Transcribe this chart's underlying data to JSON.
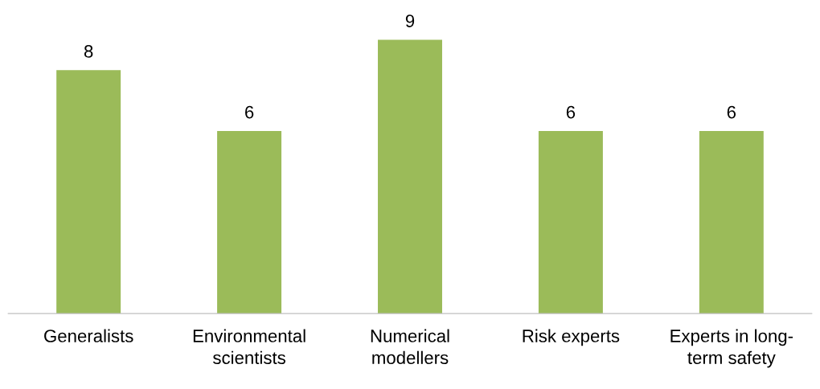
{
  "chart_data": {
    "type": "bar",
    "categories": [
      "Generalists",
      "Environmental\nscientists",
      "Numerical\nmodellers",
      "Risk experts",
      "Experts in long-\nterm safety"
    ],
    "values": [
      8,
      6,
      9,
      6,
      6
    ],
    "color": "#9bbb59",
    "data_labels": true,
    "grid": false,
    "legend": false
  }
}
